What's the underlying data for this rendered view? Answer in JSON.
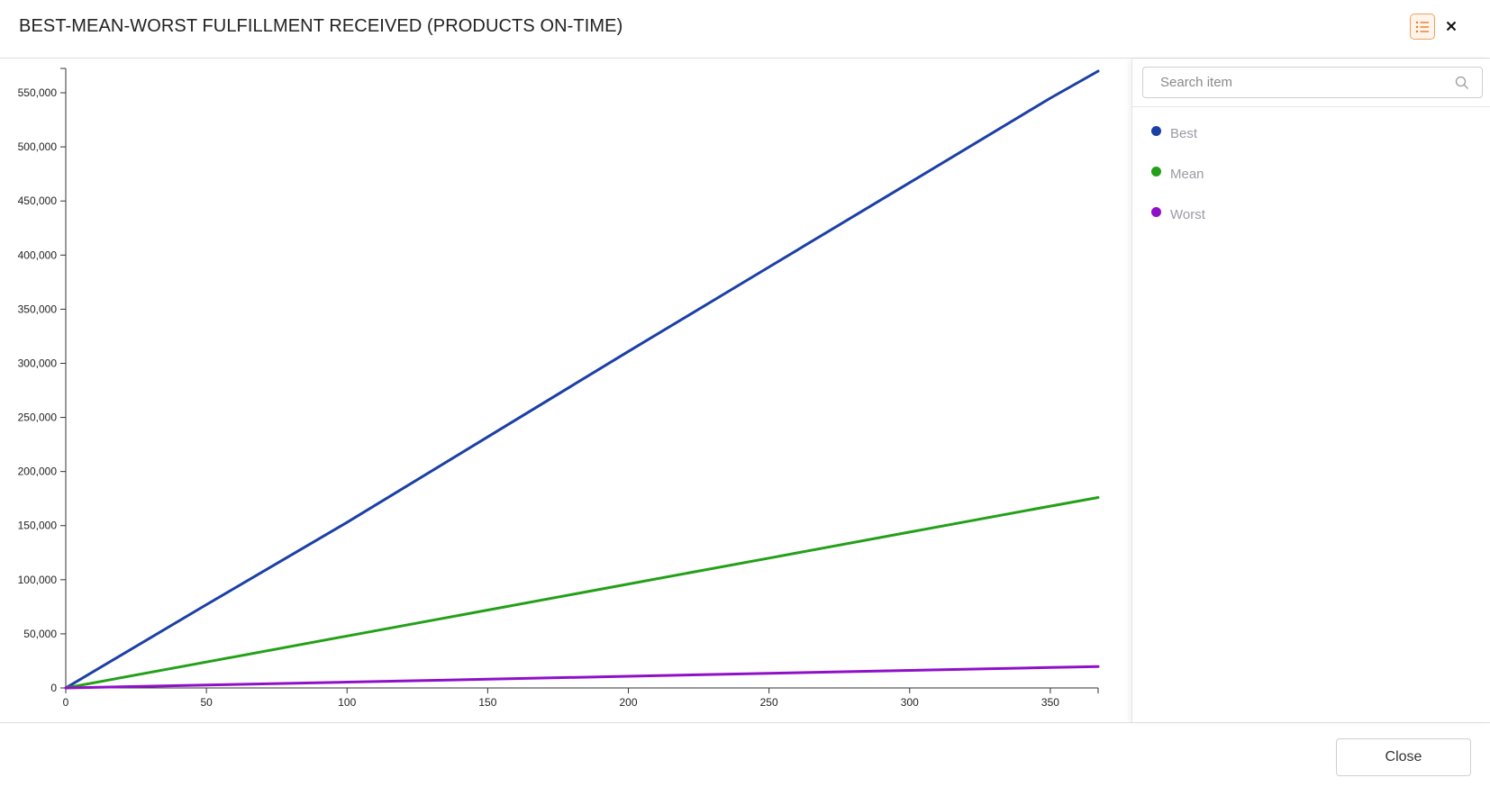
{
  "header": {
    "title": "BEST-MEAN-WORST FULFILLMENT RECEIVED (PRODUCTS ON-TIME)",
    "legend_toggle_icon": "list-icon",
    "close_icon": "close-icon"
  },
  "sidebar": {
    "search": {
      "placeholder": "Search item",
      "value": ""
    },
    "search_icon": "search-icon",
    "legend": [
      {
        "label": "Best",
        "color": "#1a3fa6"
      },
      {
        "label": "Mean",
        "color": "#23a018"
      },
      {
        "label": "Worst",
        "color": "#9010c8"
      }
    ]
  },
  "footer": {
    "close_label": "Close"
  },
  "chart_data": {
    "type": "line",
    "title": "BEST-MEAN-WORST FULFILLMENT RECEIVED (PRODUCTS ON-TIME)",
    "xlabel": "",
    "ylabel": "",
    "xlim": [
      0,
      367
    ],
    "ylim": [
      0,
      570000
    ],
    "x_ticks": [
      0,
      50,
      100,
      150,
      200,
      250,
      300,
      350
    ],
    "y_ticks": [
      0,
      50000,
      100000,
      150000,
      200000,
      250000,
      300000,
      350000,
      400000,
      450000,
      500000,
      550000
    ],
    "x_tick_labels": [
      "0",
      "50",
      "100",
      "150",
      "200",
      "250",
      "300",
      "350"
    ],
    "y_tick_labels": [
      "0",
      "50,000",
      "100,000",
      "150,000",
      "200,000",
      "250,000",
      "300,000",
      "350,000",
      "400,000",
      "450,000",
      "500,000",
      "550,000"
    ],
    "grid": false,
    "legend_position": "right",
    "x": [
      0,
      50,
      100,
      150,
      200,
      250,
      300,
      350,
      367
    ],
    "series": [
      {
        "name": "Best",
        "color": "#1a3fa6",
        "values": [
          0,
          77000,
          153000,
          232000,
          311000,
          389000,
          467000,
          545000,
          570000
        ]
      },
      {
        "name": "Mean",
        "color": "#23a018",
        "values": [
          0,
          24000,
          48000,
          72000,
          96000,
          120000,
          144000,
          168000,
          176000
        ]
      },
      {
        "name": "Worst",
        "color": "#9010c8",
        "values": [
          0,
          2700,
          5400,
          8100,
          10800,
          13500,
          16200,
          18900,
          19800
        ]
      }
    ]
  }
}
